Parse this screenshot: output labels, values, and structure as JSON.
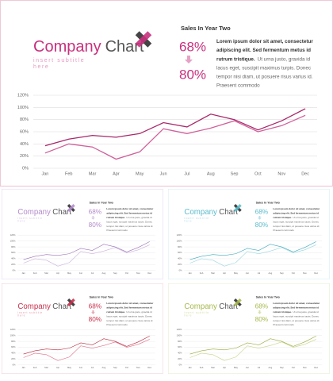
{
  "slide": {
    "title_a": "Company",
    "title_b": "Chart",
    "subtitle": [
      "insert subtitle",
      "here"
    ],
    "heading": "Sales In Year Two",
    "stat_from": "68%",
    "stat_to": "80%",
    "body": {
      "bold": [
        "Lorem ipsum dolor sit amet, consectetur",
        "adipiscing elit. Sed fermentum metus id",
        "rutrum tristique."
      ],
      "regular": [
        "Ut urna justo, gravida id",
        "lacus eget, suscipit maximus turpis. Donec",
        "tempor nisi diam, ut posuere risus varius id.",
        "Praesent commodo"
      ]
    },
    "accent": "#c8307e",
    "themes": [
      {
        "accent": "#b48ccc",
        "lines": [
          "#9a72b8",
          "#cbb0dc"
        ],
        "border": "#e6d8ee"
      },
      {
        "accent": "#5cbccc",
        "lines": [
          "#3ea8bc",
          "#9ad6e0"
        ],
        "border": "#d6eef2"
      },
      {
        "accent": "#c8304a",
        "lines": [
          "#b8283e",
          "#e07088"
        ],
        "border": "#f0d0d8"
      },
      {
        "accent": "#a8b84a",
        "lines": [
          "#98aa38",
          "#c8d488"
        ],
        "border": "#e6ecd0"
      }
    ]
  },
  "chart_data": {
    "type": "line",
    "categories": [
      "Jan",
      "Feb",
      "Mar",
      "Apr",
      "May",
      "Jun",
      "Jul",
      "Aug",
      "Sep",
      "Oct",
      "Nov",
      "Dec"
    ],
    "series": [
      {
        "color": "#a8286a",
        "values": [
          37,
          48,
          54,
          51,
          57,
          75,
          68,
          89,
          80,
          63,
          78,
          98
        ]
      },
      {
        "color": "#d0609a",
        "values": [
          25,
          40,
          35,
          15,
          27,
          65,
          57,
          66,
          78,
          60,
          70,
          87
        ]
      }
    ],
    "ylim": [
      0,
      120
    ],
    "yticks": [
      {
        "value": 0,
        "label": "0%"
      },
      {
        "value": 20,
        "label": "20%"
      },
      {
        "value": 40,
        "label": "40%"
      },
      {
        "value": 60,
        "label": "60%"
      },
      {
        "value": 80,
        "label": "80%"
      },
      {
        "value": 100,
        "label": "100%"
      },
      {
        "value": 120,
        "label": "120%"
      }
    ],
    "grid": true
  }
}
